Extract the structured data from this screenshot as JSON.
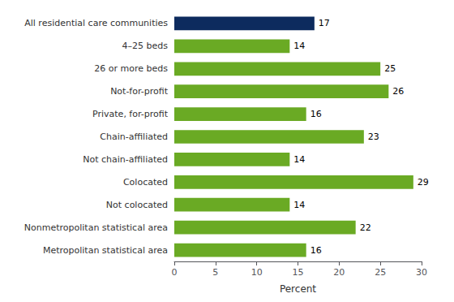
{
  "chart_data": {
    "type": "bar",
    "orientation": "horizontal",
    "categories": [
      "Metropolitan statistical area",
      "Nonmetropolitan statistical area",
      "Not colocated",
      "Colocated",
      "Not chain-affiliated",
      "Chain-affiliated",
      "Private, for-profit",
      "Not-for-profit",
      "26 or more beds",
      "4–25 beds",
      "All residential care communities"
    ],
    "values": [
      16,
      22,
      14,
      29,
      14,
      23,
      16,
      26,
      25,
      14,
      17
    ],
    "colors": [
      "#6aaa24",
      "#6aaa24",
      "#6aaa24",
      "#6aaa24",
      "#6aaa24",
      "#6aaa24",
      "#6aaa24",
      "#6aaa24",
      "#6aaa24",
      "#6aaa24",
      "#0d2b5e"
    ],
    "xlabel": "Percent",
    "xlim": [
      0,
      30
    ],
    "xticks": [
      0,
      5,
      10,
      15,
      20,
      25,
      30
    ],
    "grid": false,
    "data_labels": true
  }
}
